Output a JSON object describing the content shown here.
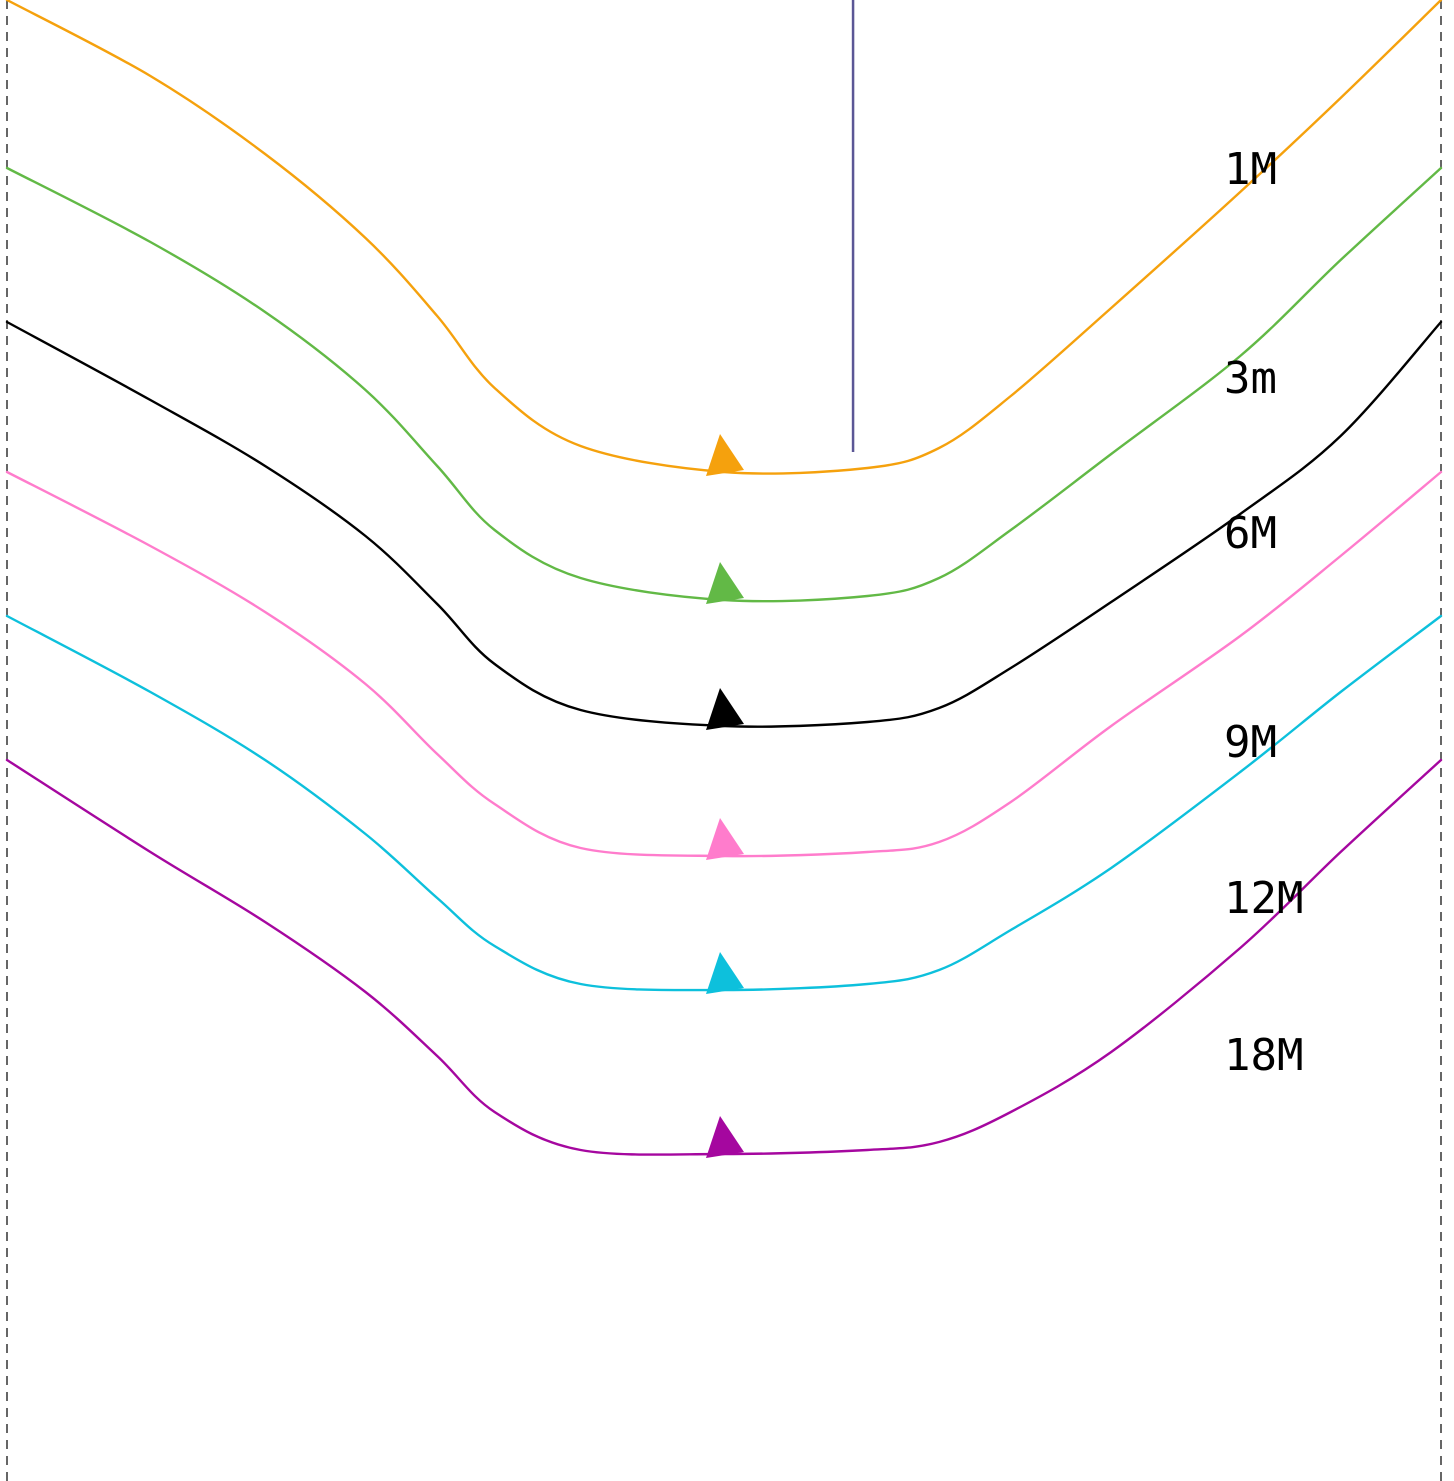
{
  "chart_data": {
    "type": "line",
    "title": "",
    "xlabel": "",
    "ylabel": "",
    "grid": false,
    "reference_line": {
      "x": 0.59,
      "color": "#5b5796"
    },
    "series": [
      {
        "name": "1M",
        "color": "#f5a10d",
        "label": "1M",
        "points": [
          [
            0.0,
            1.6
          ],
          [
            0.1,
            1.98
          ],
          [
            0.18,
            2.37
          ],
          [
            0.25,
            2.79
          ],
          [
            0.3,
            3.18
          ],
          [
            0.34,
            3.54
          ],
          [
            0.4,
            3.83
          ],
          [
            0.5,
            3.96
          ],
          [
            0.6,
            3.94
          ],
          [
            0.65,
            3.84
          ],
          [
            0.7,
            3.58
          ],
          [
            0.77,
            3.14
          ],
          [
            0.86,
            2.56
          ],
          [
            0.93,
            2.09
          ],
          [
            1.0,
            1.6
          ]
        ]
      },
      {
        "name": "3m",
        "color": "#62b946",
        "label": "3m",
        "points": [
          [
            0.0,
            2.44
          ],
          [
            0.1,
            2.81
          ],
          [
            0.18,
            3.16
          ],
          [
            0.25,
            3.55
          ],
          [
            0.3,
            3.93
          ],
          [
            0.34,
            4.25
          ],
          [
            0.4,
            4.49
          ],
          [
            0.5,
            4.6
          ],
          [
            0.6,
            4.58
          ],
          [
            0.65,
            4.49
          ],
          [
            0.7,
            4.25
          ],
          [
            0.77,
            3.87
          ],
          [
            0.86,
            3.38
          ],
          [
            0.93,
            2.9
          ],
          [
            1.0,
            2.44
          ]
        ]
      },
      {
        "name": "6M",
        "color": "#000000",
        "label": "6M",
        "points": [
          [
            0.0,
            3.21
          ],
          [
            0.1,
            3.6
          ],
          [
            0.18,
            3.93
          ],
          [
            0.25,
            4.28
          ],
          [
            0.3,
            4.62
          ],
          [
            0.34,
            4.92
          ],
          [
            0.4,
            5.15
          ],
          [
            0.5,
            5.23
          ],
          [
            0.6,
            5.21
          ],
          [
            0.65,
            5.14
          ],
          [
            0.7,
            4.94
          ],
          [
            0.77,
            4.61
          ],
          [
            0.86,
            4.17
          ],
          [
            0.93,
            3.78
          ],
          [
            1.0,
            3.21
          ]
        ]
      },
      {
        "name": "9M",
        "color": "#ff7ccc",
        "label": "9M",
        "points": [
          [
            0.0,
            3.96
          ],
          [
            0.1,
            4.33
          ],
          [
            0.18,
            4.66
          ],
          [
            0.25,
            5.02
          ],
          [
            0.3,
            5.37
          ],
          [
            0.34,
            5.62
          ],
          [
            0.4,
            5.84
          ],
          [
            0.5,
            5.88
          ],
          [
            0.6,
            5.86
          ],
          [
            0.65,
            5.81
          ],
          [
            0.7,
            5.61
          ],
          [
            0.77,
            5.23
          ],
          [
            0.86,
            4.78
          ],
          [
            0.93,
            4.38
          ],
          [
            1.0,
            3.96
          ]
        ]
      },
      {
        "name": "12M",
        "color": "#0dc0dc",
        "label": "12M",
        "points": [
          [
            0.0,
            4.68
          ],
          [
            0.1,
            5.06
          ],
          [
            0.18,
            5.4
          ],
          [
            0.25,
            5.77
          ],
          [
            0.3,
            6.09
          ],
          [
            0.34,
            6.33
          ],
          [
            0.4,
            6.52
          ],
          [
            0.5,
            6.55
          ],
          [
            0.6,
            6.52
          ],
          [
            0.65,
            6.45
          ],
          [
            0.7,
            6.25
          ],
          [
            0.77,
            5.94
          ],
          [
            0.86,
            5.46
          ],
          [
            0.93,
            5.06
          ],
          [
            1.0,
            4.68
          ]
        ]
      },
      {
        "name": "18M",
        "color": "#a5079f",
        "label": "18M",
        "points": [
          [
            0.0,
            5.4
          ],
          [
            0.1,
            5.86
          ],
          [
            0.18,
            6.21
          ],
          [
            0.25,
            6.56
          ],
          [
            0.3,
            6.88
          ],
          [
            0.34,
            7.16
          ],
          [
            0.4,
            7.35
          ],
          [
            0.5,
            7.37
          ],
          [
            0.6,
            7.35
          ],
          [
            0.65,
            7.31
          ],
          [
            0.7,
            7.16
          ],
          [
            0.77,
            6.86
          ],
          [
            0.86,
            6.34
          ],
          [
            0.93,
            5.86
          ],
          [
            1.0,
            5.4
          ]
        ]
      }
    ]
  }
}
